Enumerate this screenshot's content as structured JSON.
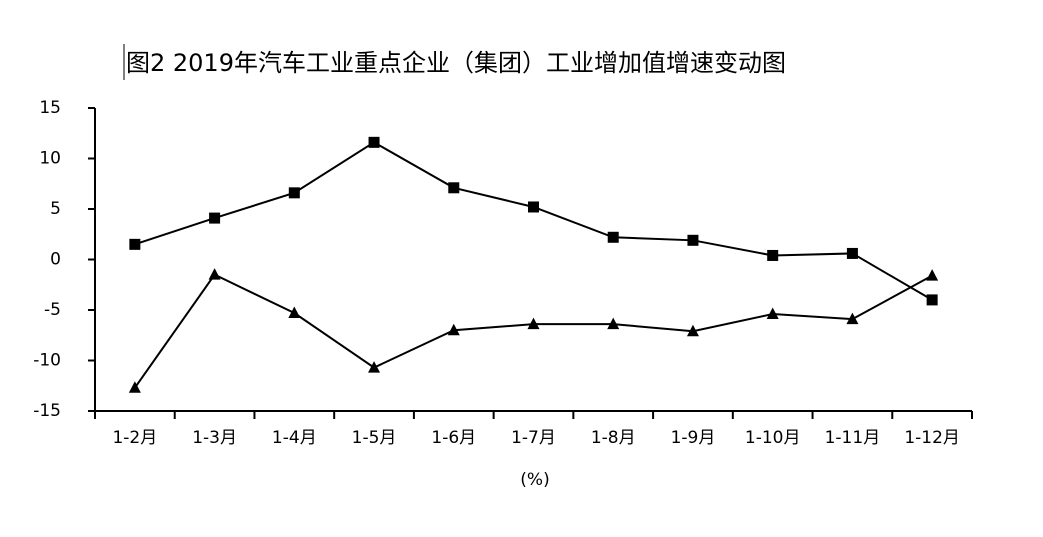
{
  "chart_data": {
    "type": "line",
    "title": "图2  2019年汽车工业重点企业（集团）工业增加值增速变动图",
    "x_label": "(%)",
    "categories": [
      "1-2月",
      "1-3月",
      "1-4月",
      "1-5月",
      "1-6月",
      "1-7月",
      "1-8月",
      "1-9月",
      "1-10月",
      "1-11月",
      "1-12月"
    ],
    "series": [
      {
        "color": "#000000",
        "marker": "square",
        "values": [
          1.5,
          4.1,
          6.6,
          11.6,
          7.1,
          5.2,
          2.2,
          1.9,
          0.4,
          0.6,
          -4.0
        ]
      },
      {
        "color": "#000000",
        "marker": "triangle",
        "values": [
          -12.7,
          -1.5,
          -5.3,
          -10.7,
          -7.0,
          -6.4,
          -6.4,
          -7.1,
          -5.4,
          -5.9,
          -1.6
        ]
      }
    ],
    "ylim": [
      -15,
      15
    ],
    "yticks": [
      -15,
      -10,
      -5,
      0,
      5,
      10,
      15
    ],
    "grid": false
  }
}
